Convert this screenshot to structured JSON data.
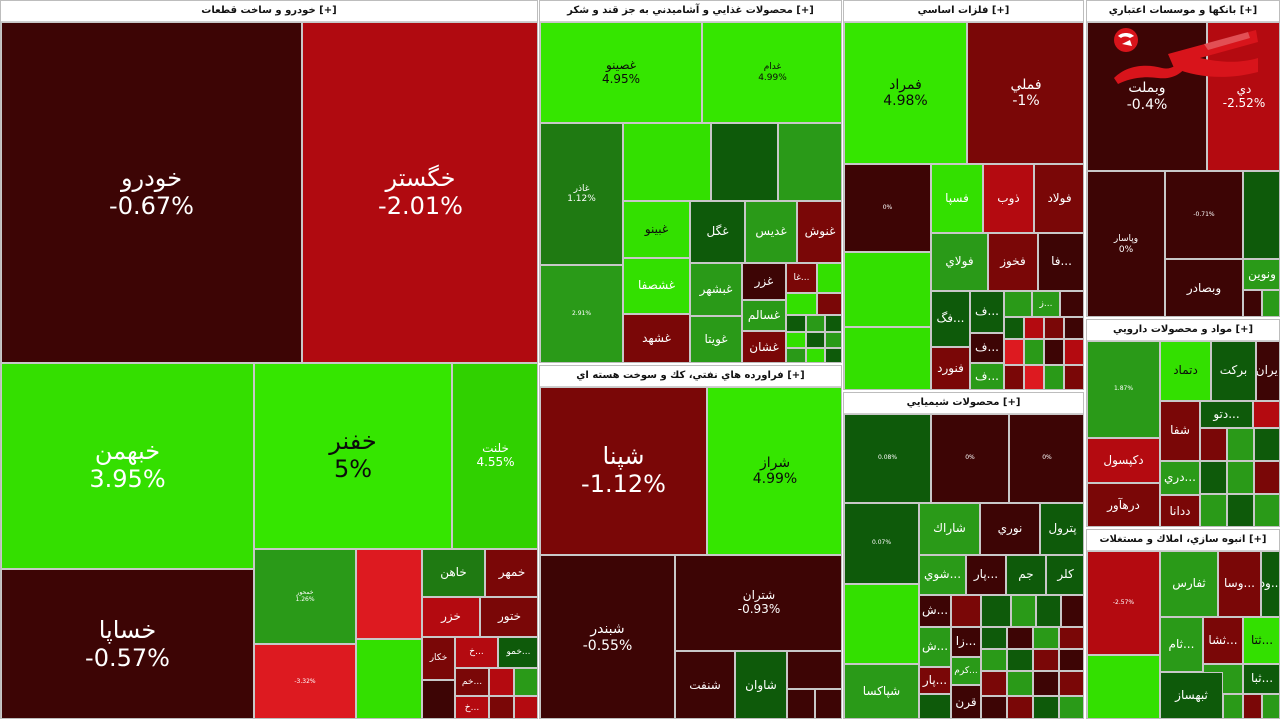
{
  "expand_label": "[+]",
  "sectors": {
    "auto": {
      "title": "خودرو و ساخت قطعات [+]"
    },
    "food": {
      "title": "محصولات غذايي و آشاميدني به جز قند و شکر [+]"
    },
    "metals": {
      "title": "فلزات اساسي [+]"
    },
    "banks": {
      "title": "بانكها و موسسات اعتباري [+]"
    },
    "oil": {
      "title": "فراورده هاي نفتي، كك و سوخت هسته اي [+]"
    },
    "chem": {
      "title": "محصولات شيميايي [+]"
    },
    "pharma": {
      "title": "مواد و محصولات دارويي [+]"
    },
    "real": {
      "title": "انبوه سازي، املاك و مستغلات [+]"
    }
  },
  "tiles": {
    "khodro": {
      "name": "خودرو",
      "change": "-0.67%"
    },
    "khegostar": {
      "name": "خگستر",
      "change": "-2.01%"
    },
    "khebahman": {
      "name": "خبهمن",
      "change": "3.95%"
    },
    "khenfar": {
      "name": "خفنر",
      "change": "5%"
    },
    "khelent": {
      "name": "خلنت",
      "change": "4.55%"
    },
    "khesapa": {
      "name": "خساپا",
      "change": "-0.57%"
    },
    "khemehver": {
      "name": "خمحور",
      "change": "1.26%"
    },
    "khahan": {
      "name": "خاهن"
    },
    "khemehr": {
      "name": "خمهر"
    },
    "khazar": {
      "name": "خزر"
    },
    "khetoor": {
      "name": "ختور"
    },
    "khekar": {
      "name": "خكار"
    },
    "khemo": {
      "name": "خمو..."
    },
    "kheam": {
      "name": "خم..."
    },
    "khe2": {
      "name": "خ..."
    },
    "khe3": {
      "name": "خ..."
    },
    "khetiz": {
      "change": "-3.32%"
    },
    "ghasino": {
      "name": "غصينو",
      "change": "4.95%"
    },
    "ghadam": {
      "name": "غدام",
      "change": "4.99%"
    },
    "ghazar": {
      "name": "غاذر",
      "change": "1.12%"
    },
    "ghenab": {
      "change": "2.91%"
    },
    "ghbino": {
      "name": "غبينو"
    },
    "ghegol": {
      "name": "غگل"
    },
    "ghedis": {
      "name": "غديس"
    },
    "ghenoosh": {
      "name": "غنوش"
    },
    "ghashsafa": {
      "name": "غشصفا"
    },
    "ghbshahr": {
      "name": "غبشهر"
    },
    "ghezar": {
      "name": "غزر"
    },
    "gha2": {
      "name": "غا..."
    },
    "ghsalem": {
      "name": "غسالم"
    },
    "ghshahd": {
      "name": "غشهد"
    },
    "ghoita": {
      "name": "غويتا"
    },
    "ghshan": {
      "name": "غشان"
    },
    "famrad": {
      "name": "فمراد",
      "change": "4.98%"
    },
    "fameli": {
      "name": "فملي",
      "change": "-1%"
    },
    "fasepa": {
      "name": "فسپا"
    },
    "zob": {
      "name": "ذوب"
    },
    "foolad": {
      "name": "فولاد"
    },
    "foolai": {
      "name": "فولاي"
    },
    "fekhooz": {
      "name": "فخوز"
    },
    "fa2": {
      "name": "فا..."
    },
    "fag": {
      "name": "فگ..."
    },
    "fa3": {
      "name": "ف..."
    },
    "ze": {
      "name": "ز..."
    },
    "fa4": {
      "name": "ف..."
    },
    "fa5": {
      "name": "ف..."
    },
    "fanvard": {
      "name": "فنورد"
    },
    "metzero": {
      "change": "0%"
    },
    "vebmelat": {
      "name": "وبملت",
      "change": "-0.4%"
    },
    "di": {
      "name": "دي",
      "change": "-2.52%"
    },
    "vepasar": {
      "name": "وپاسار",
      "change": "0%"
    },
    "vesadr": {
      "name": "وبصادر"
    },
    "vetejarat": {
      "change": "-0.71%"
    },
    "vaunion": {
      "name": "ونوين"
    },
    "shepna": {
      "name": "شپنا",
      "change": "-1.12%"
    },
    "sheraz": {
      "name": "شراز",
      "change": "4.99%"
    },
    "shebandar": {
      "name": "شبندر",
      "change": "-0.55%"
    },
    "shetran": {
      "name": "شتران",
      "change": "-0.93%"
    },
    "shenaft": {
      "name": "شنفت"
    },
    "shavan": {
      "name": "شاوان"
    },
    "chemzero1": {
      "change": "0.08%"
    },
    "chemzero2": {
      "change": "0%"
    },
    "chemzero3": {
      "change": "0%"
    },
    "chemsix": {
      "change": "0.07%"
    },
    "sharak": {
      "name": "شاراك"
    },
    "noori": {
      "name": "نوري"
    },
    "petrol": {
      "name": "پترول"
    },
    "shoy": {
      "name": "شوي..."
    },
    "par": {
      "name": "پار..."
    },
    "jam": {
      "name": "جم"
    },
    "kala": {
      "name": "كلر"
    },
    "sh1": {
      "name": "ش..."
    },
    "za": {
      "name": "زا..."
    },
    "kerm": {
      "name": "كرم..."
    },
    "sh2": {
      "name": "ش..."
    },
    "shepaksa": {
      "name": "شپاكسا"
    },
    "par2": {
      "name": "پار..."
    },
    "qoran": {
      "name": "قرن"
    },
    "delam": {
      "change": "1.87%"
    },
    "dtamad": {
      "name": "دتماد"
    },
    "barkat": {
      "name": "بركت"
    },
    "iran": {
      "name": "ايران"
    },
    "detoo": {
      "name": "دتو..."
    },
    "shafa": {
      "name": "شفا"
    },
    "dakspol": {
      "name": "دكپسول"
    },
    "dari": {
      "name": "دري..."
    },
    "darhavar": {
      "name": "درهآور"
    },
    "dana": {
      "name": "ددانا"
    },
    "kerman": {
      "change": "-2.57%"
    },
    "tefars": {
      "name": "ثفارس"
    },
    "vasa": {
      "name": "وسا..."
    },
    "vad": {
      "name": "ود..."
    },
    "tam": {
      "name": "ثام..."
    },
    "tasha": {
      "name": "ثشا..."
    },
    "tata": {
      "name": "ثتا..."
    },
    "teba": {
      "name": "ثبا..."
    },
    "tebhsaz": {
      "name": "ثبهساز"
    }
  },
  "colors": {
    "bright_green": "#33e000",
    "green": "#2a9a18",
    "dark_green": "#0e5a0a",
    "dark_red": "#3d0505",
    "maroon": "#7a0707",
    "red": "#b40a10",
    "bright_red": "#dd1a20",
    "logo_red": "#d8141b"
  },
  "logo": {
    "icon": "rokna-logo-icon"
  }
}
